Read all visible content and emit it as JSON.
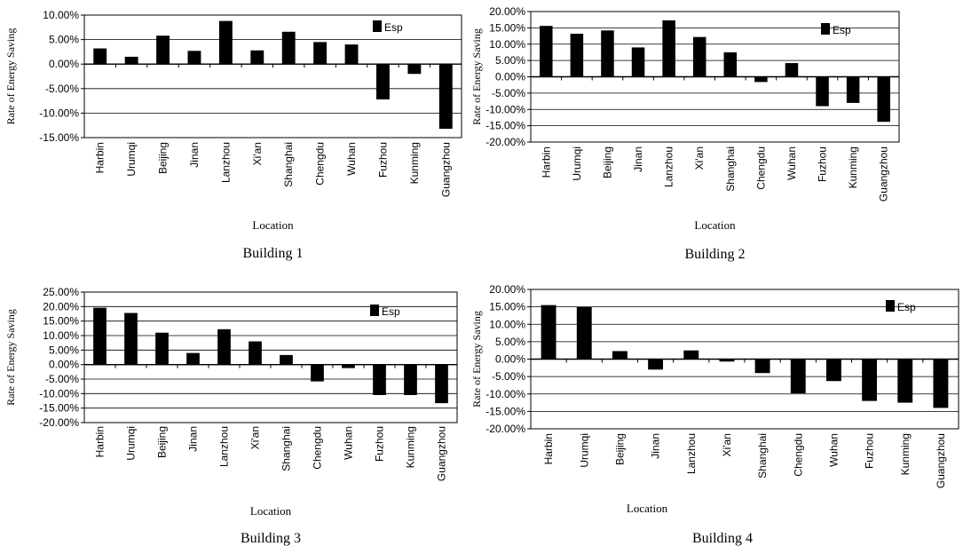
{
  "chart_data": [
    {
      "type": "bar",
      "caption": "Building 1",
      "xlabel": "Location",
      "ylabel": "Rate of Energy Saving",
      "legend": "Esp",
      "legend_position": "top-right",
      "ylim": [
        -15,
        10
      ],
      "yticks": [
        10,
        5,
        0,
        -5,
        -10,
        -15
      ],
      "ytick_labels": [
        "10.00%",
        "5.00%",
        "0.00%",
        "-5.00%",
        "-10.00%",
        "-15.00%"
      ],
      "grid": true,
      "categories": [
        "Harbin",
        "Urumqi",
        "Beijing",
        "Jinan",
        "Lanzhou",
        "Xi'an",
        "Shanghai",
        "Chengdu",
        "Wuhan",
        "Fuzhou",
        "Kunming",
        "Guangzhou"
      ],
      "series": [
        {
          "values": [
            3.2,
            1.5,
            5.8,
            2.7,
            8.8,
            2.8,
            6.6,
            4.5,
            4.0,
            -7.2,
            -2.0,
            -13.2
          ]
        }
      ]
    },
    {
      "type": "bar",
      "caption": "Building 2",
      "xlabel": "Location",
      "ylabel": "Rate of Energy Saving",
      "legend": "Esp",
      "legend_position": "top-right",
      "ylim": [
        -20,
        20
      ],
      "yticks": [
        20,
        15,
        10,
        5,
        0,
        -5,
        -10,
        -15,
        -20
      ],
      "ytick_labels": [
        "20.00%",
        "15.00%",
        "10.00%",
        "5.00%",
        "0.00%",
        "-5.00%",
        "-10.00%",
        "-15.00%",
        "-20.00%"
      ],
      "grid": true,
      "categories": [
        "Harbin",
        "Urumqi",
        "Beijing",
        "Jinan",
        "Lanzhou",
        "Xi'an",
        "Shanghai",
        "Chengdu",
        "Wuhan",
        "Fuzhou",
        "Kunming",
        "Guangzhou"
      ],
      "series": [
        {
          "values": [
            15.6,
            13.2,
            14.2,
            9.0,
            17.3,
            12.2,
            7.5,
            -1.6,
            4.2,
            -9.0,
            -8.0,
            -13.8
          ]
        }
      ]
    },
    {
      "type": "bar",
      "caption": "Building 3",
      "xlabel": "Location",
      "ylabel": "Rate of Energy Saving",
      "legend": "Esp",
      "legend_position": "top-right",
      "ylim": [
        -20,
        25
      ],
      "yticks": [
        25,
        20,
        15,
        10,
        5,
        0,
        -5,
        -10,
        -15,
        -20
      ],
      "ytick_labels": [
        "25.00%",
        "20.00%",
        "15.00%",
        "10.00%",
        "5.00%",
        "0.00%",
        "-5.00%",
        "-10.00%",
        "-15.00%",
        "-20.00%"
      ],
      "grid": true,
      "categories": [
        "Harbin",
        "Urumqi",
        "Beijing",
        "Jinan",
        "Lanzhou",
        "Xi'an",
        "Shanghai",
        "Chengdu",
        "Wuhan",
        "Fuzhou",
        "Kunming",
        "Guangzhou"
      ],
      "series": [
        {
          "values": [
            19.6,
            17.8,
            11.0,
            4.0,
            12.2,
            8.0,
            3.3,
            -5.8,
            -1.2,
            -10.5,
            -10.5,
            -13.3
          ]
        }
      ]
    },
    {
      "type": "bar",
      "caption": "Building 4",
      "xlabel": "Location",
      "ylabel": "Rate of Energy Saving",
      "legend": "Esp",
      "legend_position": "top-right",
      "ylim": [
        -20,
        20
      ],
      "yticks": [
        20,
        15,
        10,
        5,
        0,
        -5,
        -10,
        -15,
        -20
      ],
      "ytick_labels": [
        "20.00%",
        "15.00%",
        "10.00%",
        "5.00%",
        "0.00%",
        "-5.00%",
        "-10.00%",
        "-15.00%",
        "-20.00%"
      ],
      "grid": true,
      "categories": [
        "Harbin",
        "Urumqi",
        "Beijing",
        "Jinan",
        "Lanzhou",
        "Xi'an",
        "Shanghai",
        "Chengdu",
        "Wuhan",
        "Fuzhou",
        "Kunming",
        "Guangzhou"
      ],
      "series": [
        {
          "values": [
            15.5,
            15.0,
            2.3,
            -3.0,
            2.5,
            -0.7,
            -4.0,
            -9.8,
            -6.3,
            -12.0,
            -12.5,
            -14.0
          ]
        }
      ]
    }
  ]
}
